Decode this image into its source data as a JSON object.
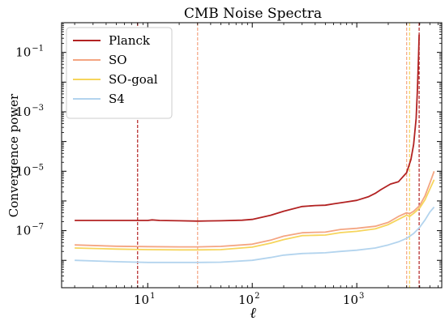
{
  "chart_data": {
    "type": "line",
    "title": "CMB Noise Spectra",
    "xlabel": "ℓ",
    "ylabel": "Convergence power",
    "xscale": "log",
    "yscale": "log",
    "xlim": [
      1.5,
      6500
    ],
    "ylim": [
      1.2e-09,
      1.0
    ],
    "grid": false,
    "legend_position": "top-left",
    "x_ticks": [
      {
        "value": 10,
        "base": "10",
        "exp": "1"
      },
      {
        "value": 100,
        "base": "10",
        "exp": "2"
      },
      {
        "value": 1000,
        "base": "10",
        "exp": "3"
      }
    ],
    "y_ticks": [
      {
        "value": 1e-07,
        "base": "10",
        "exp": "−7"
      },
      {
        "value": 1e-05,
        "base": "10",
        "exp": "−5"
      },
      {
        "value": 0.001,
        "base": "10",
        "exp": "−3"
      },
      {
        "value": 0.1,
        "base": "10",
        "exp": "−1"
      }
    ],
    "series": [
      {
        "name": "Planck",
        "color": "#b22222",
        "x": [
          2,
          5,
          8,
          10,
          11,
          13,
          20,
          30,
          50,
          80,
          100,
          150,
          200,
          300,
          400,
          500,
          600,
          800,
          1000,
          1300,
          1500,
          1700,
          1900,
          2100,
          2500,
          3000,
          3300,
          3500,
          3700,
          3800,
          3900,
          3950
        ],
        "y": [
          2.2e-07,
          2.2e-07,
          2.2e-07,
          2.2e-07,
          2.3e-07,
          2.2e-07,
          2.15e-07,
          2.1e-07,
          2.15e-07,
          2.25e-07,
          2.4e-07,
          3.3e-07,
          4.5e-07,
          6.5e-07,
          7e-07,
          7.2e-07,
          8e-07,
          9.3e-07,
          1.05e-06,
          1.4e-06,
          1.8e-06,
          2.4e-06,
          3e-06,
          3.7e-06,
          4.4e-06,
          9e-06,
          2.5e-05,
          8e-05,
          0.0006,
          0.005,
          0.08,
          0.4
        ]
      },
      {
        "name": "SO",
        "color": "#f4a582",
        "x": [
          2,
          5,
          10,
          20,
          30,
          50,
          100,
          150,
          200,
          300,
          400,
          500,
          700,
          1000,
          1500,
          2000,
          2500,
          3000,
          3200,
          3500,
          4000,
          4500,
          5000,
          5500
        ],
        "y": [
          3.3e-08,
          3e-08,
          2.9e-08,
          2.85e-08,
          2.85e-08,
          2.95e-08,
          3.5e-08,
          4.8e-08,
          6.5e-08,
          8.5e-08,
          8.8e-08,
          8.9e-08,
          1.1e-07,
          1.2e-07,
          1.4e-07,
          1.9e-07,
          3e-07,
          4e-07,
          3.7e-07,
          4.5e-07,
          7e-07,
          1.5e-06,
          4e-06,
          1e-05
        ]
      },
      {
        "name": "SO-goal",
        "color": "#f6d55c",
        "x": [
          2,
          5,
          10,
          20,
          30,
          50,
          100,
          150,
          200,
          300,
          400,
          500,
          700,
          1000,
          1500,
          2000,
          2500,
          3000,
          3200,
          3500,
          4000,
          4500,
          5000,
          5500
        ],
        "y": [
          2.6e-08,
          2.4e-08,
          2.3e-08,
          2.25e-08,
          2.25e-08,
          2.3e-08,
          2.8e-08,
          3.8e-08,
          5e-08,
          6.8e-08,
          7e-08,
          7.1e-08,
          8.6e-08,
          9.5e-08,
          1.15e-07,
          1.6e-07,
          2.4e-07,
          3.3e-07,
          3e-07,
          3.8e-07,
          5.8e-07,
          1.1e-06,
          2.5e-06,
          5.2e-06
        ]
      },
      {
        "name": "S4",
        "color": "#b3d4ee",
        "x": [
          2,
          5,
          10,
          20,
          30,
          50,
          100,
          150,
          200,
          300,
          400,
          500,
          700,
          1000,
          1500,
          2000,
          2500,
          3000,
          3500,
          4000,
          4500,
          5000,
          5500
        ],
        "y": [
          1e-08,
          9e-09,
          8.5e-09,
          8.5e-09,
          8.5e-09,
          8.7e-09,
          1e-08,
          1.25e-08,
          1.5e-08,
          1.7e-08,
          1.75e-08,
          1.8e-08,
          2e-08,
          2.2e-08,
          2.6e-08,
          3.3e-08,
          4.2e-08,
          5.5e-08,
          8e-08,
          1.3e-07,
          2.3e-07,
          4.2e-07,
          6.2e-07
        ]
      }
    ],
    "vlines": [
      {
        "x": 8,
        "color": "#b22222"
      },
      {
        "x": 30,
        "color": "#f4a582"
      },
      {
        "x": 3000,
        "color": "#f4a582"
      },
      {
        "x": 3200,
        "color": "#f6d55c"
      },
      {
        "x": 3950,
        "color": "#b22222"
      }
    ]
  }
}
